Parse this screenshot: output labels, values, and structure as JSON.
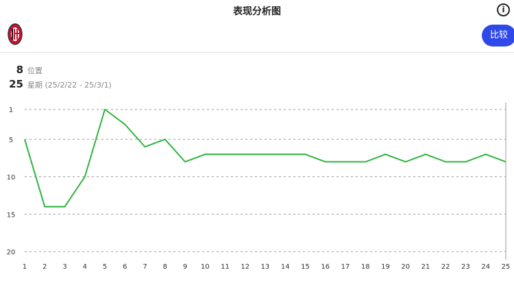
{
  "header": {
    "title": "表现分析图",
    "info_icon": "info-icon",
    "compare_label": "比较",
    "team_logo": "ac-milan-crest"
  },
  "stats": {
    "position_value": "8",
    "position_label": "位置",
    "week_value": "25",
    "week_label": "星期 (25/2/22 - 25/3/1)"
  },
  "chart_data": {
    "type": "line",
    "x": [
      1,
      2,
      3,
      4,
      5,
      6,
      7,
      8,
      9,
      10,
      11,
      12,
      13,
      14,
      15,
      16,
      17,
      18,
      19,
      20,
      21,
      22,
      23,
      24,
      25
    ],
    "series": [
      {
        "values": [
          5,
          14,
          14,
          10,
          1,
          3,
          6,
          5,
          8,
          7,
          7,
          7,
          7,
          7,
          7,
          8,
          8,
          8,
          7,
          8,
          7,
          8,
          8,
          7,
          8
        ],
        "color": "#2db43c"
      }
    ],
    "y_ticks": [
      1,
      5,
      10,
      15,
      20
    ],
    "ylim": [
      1,
      20
    ],
    "y_inverted": true,
    "grid": true
  }
}
